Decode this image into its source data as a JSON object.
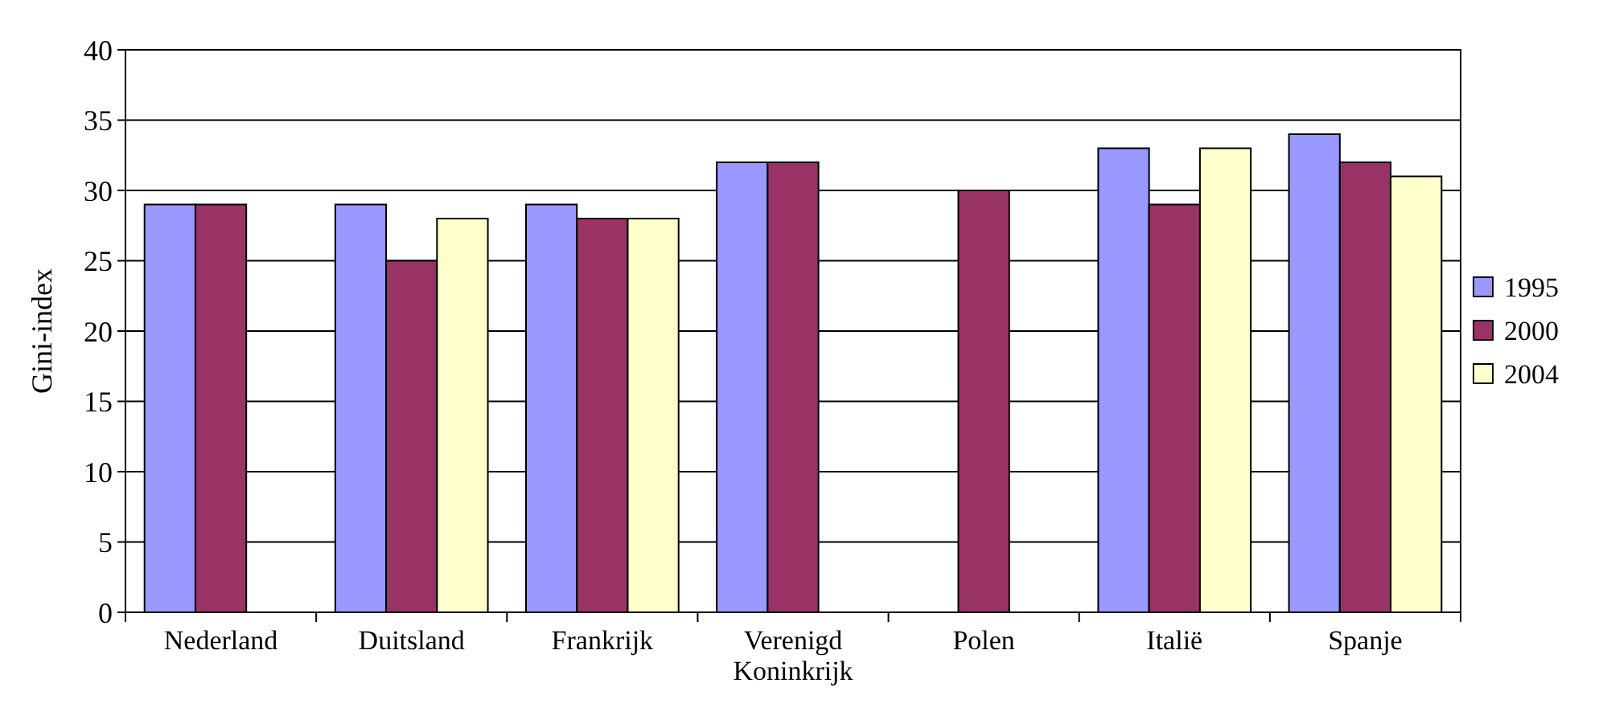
{
  "chart_data": {
    "type": "bar",
    "ylabel": "Gini-index",
    "categories": [
      "Nederland",
      "Duitsland",
      "Frankrijk",
      "Verenigd Koninkrijk",
      "Polen",
      "Italië",
      "Spanje"
    ],
    "series": [
      {
        "name": "1995",
        "color": "#9999ff",
        "values": [
          29,
          29,
          29,
          32,
          null,
          33,
          34
        ]
      },
      {
        "name": "2000",
        "color": "#993366",
        "values": [
          29,
          25,
          28,
          32,
          30,
          29,
          32
        ]
      },
      {
        "name": "2004",
        "color": "#ffffcc",
        "values": [
          null,
          28,
          28,
          null,
          null,
          33,
          31
        ]
      }
    ],
    "ylim": [
      0,
      40
    ],
    "yticks": [
      0,
      5,
      10,
      15,
      20,
      25,
      30,
      35,
      40
    ],
    "grid": "y",
    "legend": "right"
  }
}
